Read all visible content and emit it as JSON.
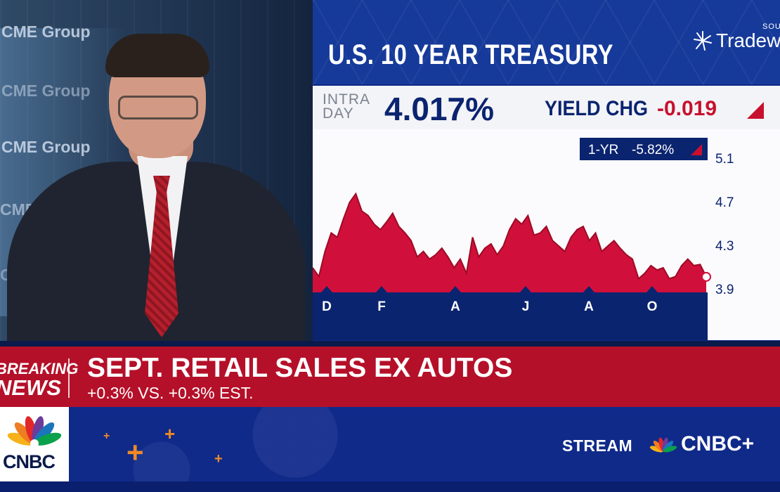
{
  "video": {
    "background_logos": [
      "CME Group",
      "CME Group",
      "CME Group",
      "CME",
      "CME"
    ]
  },
  "panel": {
    "title": "U.S. 10 YEAR TREASURY",
    "source_label": "SOU",
    "source_brand": "Tradewe",
    "intraday_label_1": "INTRA",
    "intraday_label_2": "DAY",
    "yield_value": "4.017%",
    "yield_change_label": "YIELD CHG",
    "yield_change_value": "-0.019",
    "one_year_label": "1-YR",
    "one_year_change": "-5.82%",
    "colors": {
      "accent_red": "#c8102e",
      "navy": "#0b2470",
      "panel_blue": "#0d2a86"
    }
  },
  "chart_data": {
    "type": "area",
    "title": "U.S. 10 YEAR TREASURY",
    "y_ticks": [
      "5.1",
      "4.7",
      "4.3",
      "3.9"
    ],
    "ylim": [
      3.9,
      5.1
    ],
    "x_ticks": [
      "D",
      "F",
      "A",
      "J",
      "A",
      "O"
    ],
    "values": [
      4.1,
      4.02,
      4.25,
      4.42,
      4.38,
      4.55,
      4.7,
      4.78,
      4.62,
      4.58,
      4.5,
      4.45,
      4.52,
      4.6,
      4.48,
      4.42,
      4.35,
      4.2,
      4.25,
      4.18,
      4.22,
      4.28,
      4.2,
      4.1,
      4.18,
      4.05,
      4.38,
      4.2,
      4.28,
      4.32,
      4.22,
      4.3,
      4.45,
      4.55,
      4.5,
      4.58,
      4.4,
      4.42,
      4.48,
      4.35,
      4.3,
      4.25,
      4.38,
      4.45,
      4.48,
      4.35,
      4.42,
      4.25,
      4.3,
      4.35,
      4.28,
      4.22,
      4.18,
      4.0,
      4.05,
      4.12,
      4.08,
      4.1,
      4.0,
      4.02,
      4.12,
      4.18,
      4.12,
      4.13,
      4.02
    ],
    "last_value": 4.017,
    "grid": false
  },
  "breaking": {
    "label_1": "BREAKING",
    "label_2": "NEWS",
    "headline": "SEPT. RETAIL SALES EX AUTOS",
    "subline": "+0.3% VS. +0.3% EST."
  },
  "footer": {
    "network": "CNBC",
    "stream_label": "STREAM",
    "stream_brand": "CNBC+"
  }
}
